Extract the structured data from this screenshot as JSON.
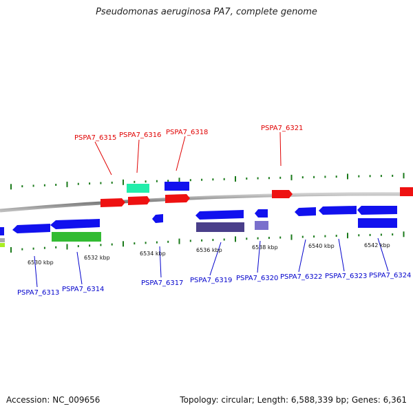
{
  "title": "Pseudomonas aeruginosa PA7, complete genome",
  "accession_text": "Accession: NC_009656",
  "summary_text": "Topology: circular; Length: 6,588,339 bp; Genes: 6,361",
  "colors": {
    "backbone": "#888888",
    "tick": "#1a7a1a",
    "top_label": "#e00000",
    "bottom_label": "#0000cc",
    "red": "#ee1111",
    "blue": "#1111ee",
    "teal": "#22eeaa",
    "green": "#33bb33",
    "purple": "#4a3f8a",
    "lavender": "#7a70cc"
  },
  "scale": {
    "unit": "kbp",
    "tick_labels": [
      "6530 kbp",
      "6532 kbp",
      "6534 kbp",
      "6536 kbp",
      "6538 kbp",
      "6540 kbp",
      "6542 kbp"
    ]
  },
  "top_labels": [
    "PSPA7_6315",
    "PSPA7_6316",
    "PSPA7_6318",
    "PSPA7_6321"
  ],
  "bottom_labels": [
    "PSPA7_6313",
    "PSPA7_6314",
    "PSPA7_6317",
    "PSPA7_6319",
    "PSPA7_6320",
    "PSPA7_6322",
    "PSPA7_6323",
    "PSPA7_6324"
  ]
}
